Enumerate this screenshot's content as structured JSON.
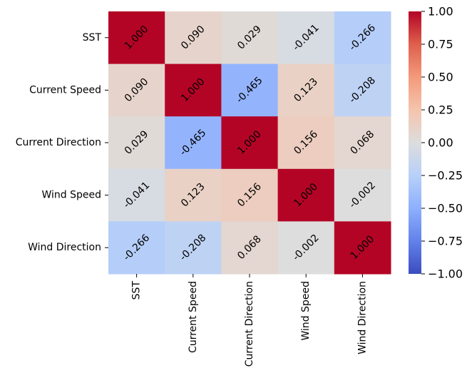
{
  "chart_data": {
    "type": "heatmap",
    "title": "",
    "xlabel": "",
    "ylabel": "",
    "row_labels": [
      "SST",
      "Current Speed",
      "Current Direction",
      "Wind Speed",
      "Wind Direction"
    ],
    "col_labels": [
      "SST",
      "Current Speed",
      "Current Direction",
      "Wind Speed",
      "Wind Direction"
    ],
    "values": [
      [
        1.0,
        0.09,
        0.029,
        -0.041,
        -0.266
      ],
      [
        0.09,
        1.0,
        -0.465,
        0.123,
        -0.208
      ],
      [
        0.029,
        -0.465,
        1.0,
        0.156,
        0.068
      ],
      [
        -0.041,
        0.123,
        0.156,
        1.0,
        -0.002
      ],
      [
        -0.266,
        -0.208,
        0.068,
        -0.002,
        1.0
      ]
    ],
    "value_labels": [
      [
        "1.000",
        "0.090",
        "0.029",
        "-0.041",
        "-0.266"
      ],
      [
        "0.090",
        "1.000",
        "-0.465",
        "0.123",
        "-0.208"
      ],
      [
        "0.029",
        "-0.465",
        "1.000",
        "0.156",
        "0.068"
      ],
      [
        "-0.041",
        "0.123",
        "0.156",
        "1.000",
        "-0.002"
      ],
      [
        "-0.266",
        "-0.208",
        "0.068",
        "-0.002",
        "1.000"
      ]
    ],
    "colormap": "coolwarm",
    "vmin": -1.0,
    "vmax": 1.0,
    "colorbar_ticks": [
      1.0,
      0.75,
      0.5,
      0.25,
      0.0,
      -0.25,
      -0.5,
      -0.75,
      -1.0
    ],
    "colorbar_tick_labels": [
      "1.00",
      "0.75",
      "0.50",
      "0.25",
      "0.00",
      "−0.25",
      "−0.50",
      "−0.75",
      "−1.00"
    ]
  }
}
